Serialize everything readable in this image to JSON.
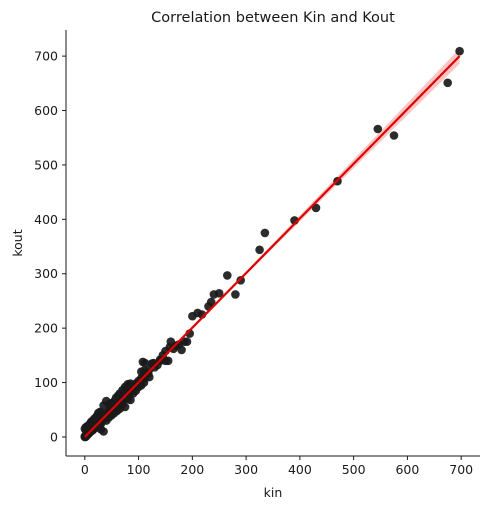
{
  "chart_data": {
    "type": "scatter",
    "title": "Correlation between Kin and Kout",
    "xlabel": "kin",
    "ylabel": "kout",
    "xlim": [
      -35,
      735
    ],
    "ylim": [
      -35,
      748
    ],
    "xticks": [
      0,
      100,
      200,
      300,
      400,
      500,
      600,
      700
    ],
    "yticks": [
      0,
      100,
      200,
      300,
      400,
      500,
      600,
      700
    ],
    "grid": false,
    "point_color": "#1a1a1a",
    "fit_color": "#e00000",
    "ci_color": "#f4a0a0",
    "fit_line": {
      "x": [
        0,
        697
      ],
      "y": [
        0,
        700
      ]
    },
    "ci_half_width": [
      [
        0,
        2
      ],
      [
        300,
        3
      ],
      [
        500,
        8
      ],
      [
        697,
        14
      ]
    ],
    "points": [
      [
        0,
        0
      ],
      [
        0,
        1
      ],
      [
        1,
        0
      ],
      [
        1,
        2
      ],
      [
        2,
        1
      ],
      [
        2,
        3
      ],
      [
        3,
        2
      ],
      [
        3,
        4
      ],
      [
        4,
        3
      ],
      [
        4,
        5
      ],
      [
        5,
        4
      ],
      [
        5,
        6
      ],
      [
        6,
        5
      ],
      [
        6,
        7
      ],
      [
        7,
        8
      ],
      [
        8,
        7
      ],
      [
        8,
        9
      ],
      [
        9,
        10
      ],
      [
        10,
        9
      ],
      [
        10,
        12
      ],
      [
        11,
        10
      ],
      [
        12,
        14
      ],
      [
        12,
        11
      ],
      [
        13,
        15
      ],
      [
        14,
        12
      ],
      [
        15,
        17
      ],
      [
        15,
        13
      ],
      [
        16,
        18
      ],
      [
        17,
        15
      ],
      [
        18,
        20
      ],
      [
        19,
        17
      ],
      [
        20,
        22
      ],
      [
        21,
        19
      ],
      [
        22,
        24
      ],
      [
        23,
        21
      ],
      [
        24,
        26
      ],
      [
        25,
        23
      ],
      [
        26,
        28
      ],
      [
        27,
        25
      ],
      [
        28,
        30
      ],
      [
        29,
        27
      ],
      [
        30,
        33
      ],
      [
        31,
        29
      ],
      [
        32,
        35
      ],
      [
        33,
        31
      ],
      [
        34,
        37
      ],
      [
        35,
        33
      ],
      [
        36,
        39
      ],
      [
        38,
        36
      ],
      [
        40,
        42
      ],
      [
        41,
        39
      ],
      [
        42,
        45
      ],
      [
        44,
        42
      ],
      [
        45,
        48
      ],
      [
        46,
        44
      ],
      [
        48,
        51
      ],
      [
        50,
        47
      ],
      [
        52,
        55
      ],
      [
        54,
        52
      ],
      [
        55,
        58
      ],
      [
        57,
        55
      ],
      [
        58,
        61
      ],
      [
        60,
        57
      ],
      [
        62,
        65
      ],
      [
        64,
        61
      ],
      [
        66,
        69
      ],
      [
        68,
        65
      ],
      [
        70,
        73
      ],
      [
        72,
        69
      ],
      [
        74,
        77
      ],
      [
        76,
        73
      ],
      [
        78,
        81
      ],
      [
        80,
        78
      ],
      [
        82,
        85
      ],
      [
        84,
        82
      ],
      [
        86,
        89
      ],
      [
        88,
        85
      ],
      [
        90,
        93
      ],
      [
        92,
        90
      ],
      [
        95,
        98
      ],
      [
        98,
        95
      ],
      [
        100,
        103
      ],
      [
        102,
        100
      ],
      [
        105,
        108
      ],
      [
        108,
        105
      ],
      [
        110,
        113
      ],
      [
        113,
        110
      ],
      [
        115,
        118
      ],
      [
        118,
        116
      ],
      [
        120,
        124
      ],
      [
        0,
        15
      ],
      [
        2,
        18
      ],
      [
        5,
        20
      ],
      [
        8,
        22
      ],
      [
        10,
        25
      ],
      [
        12,
        28
      ],
      [
        3,
        10
      ],
      [
        6,
        14
      ],
      [
        15,
        30
      ],
      [
        18,
        34
      ],
      [
        22,
        38
      ],
      [
        25,
        44
      ],
      [
        28,
        46
      ],
      [
        30,
        45
      ],
      [
        35,
        58
      ],
      [
        40,
        66
      ],
      [
        45,
        60
      ],
      [
        50,
        62
      ],
      [
        55,
        66
      ],
      [
        58,
        72
      ],
      [
        62,
        76
      ],
      [
        65,
        80
      ],
      [
        70,
        86
      ],
      [
        75,
        92
      ],
      [
        80,
        97
      ],
      [
        85,
        98
      ],
      [
        20,
        28
      ],
      [
        25,
        18
      ],
      [
        30,
        24
      ],
      [
        35,
        10
      ],
      [
        40,
        30
      ],
      [
        30,
        14
      ],
      [
        45,
        36
      ],
      [
        50,
        40
      ],
      [
        55,
        44
      ],
      [
        60,
        48
      ],
      [
        65,
        52
      ],
      [
        70,
        60
      ],
      [
        75,
        55
      ],
      [
        80,
        70
      ],
      [
        85,
        68
      ],
      [
        90,
        80
      ],
      [
        95,
        85
      ],
      [
        100,
        92
      ],
      [
        105,
        95
      ],
      [
        110,
        100
      ],
      [
        110,
        122
      ],
      [
        108,
        138
      ],
      [
        115,
        118
      ],
      [
        120,
        110
      ],
      [
        125,
        135
      ],
      [
        130,
        128
      ],
      [
        135,
        132
      ],
      [
        140,
        140
      ],
      [
        145,
        150
      ],
      [
        150,
        158
      ],
      [
        155,
        140
      ],
      [
        158,
        165
      ],
      [
        160,
        175
      ],
      [
        165,
        162
      ],
      [
        170,
        168
      ],
      [
        175,
        170
      ],
      [
        180,
        160
      ],
      [
        185,
        175
      ],
      [
        190,
        175
      ],
      [
        195,
        190
      ],
      [
        200,
        222
      ],
      [
        210,
        228
      ],
      [
        218,
        225
      ],
      [
        230,
        240
      ],
      [
        235,
        248
      ],
      [
        240,
        262
      ],
      [
        250,
        264
      ],
      [
        265,
        297
      ],
      [
        280,
        262
      ],
      [
        290,
        288
      ],
      [
        325,
        344
      ],
      [
        335,
        375
      ],
      [
        390,
        398
      ],
      [
        430,
        421
      ],
      [
        470,
        470
      ],
      [
        545,
        566
      ],
      [
        575,
        554
      ],
      [
        675,
        651
      ],
      [
        697,
        709
      ],
      [
        150,
        140
      ],
      [
        140,
        142
      ],
      [
        128,
        136
      ],
      [
        112,
        136
      ],
      [
        105,
        120
      ]
    ]
  }
}
